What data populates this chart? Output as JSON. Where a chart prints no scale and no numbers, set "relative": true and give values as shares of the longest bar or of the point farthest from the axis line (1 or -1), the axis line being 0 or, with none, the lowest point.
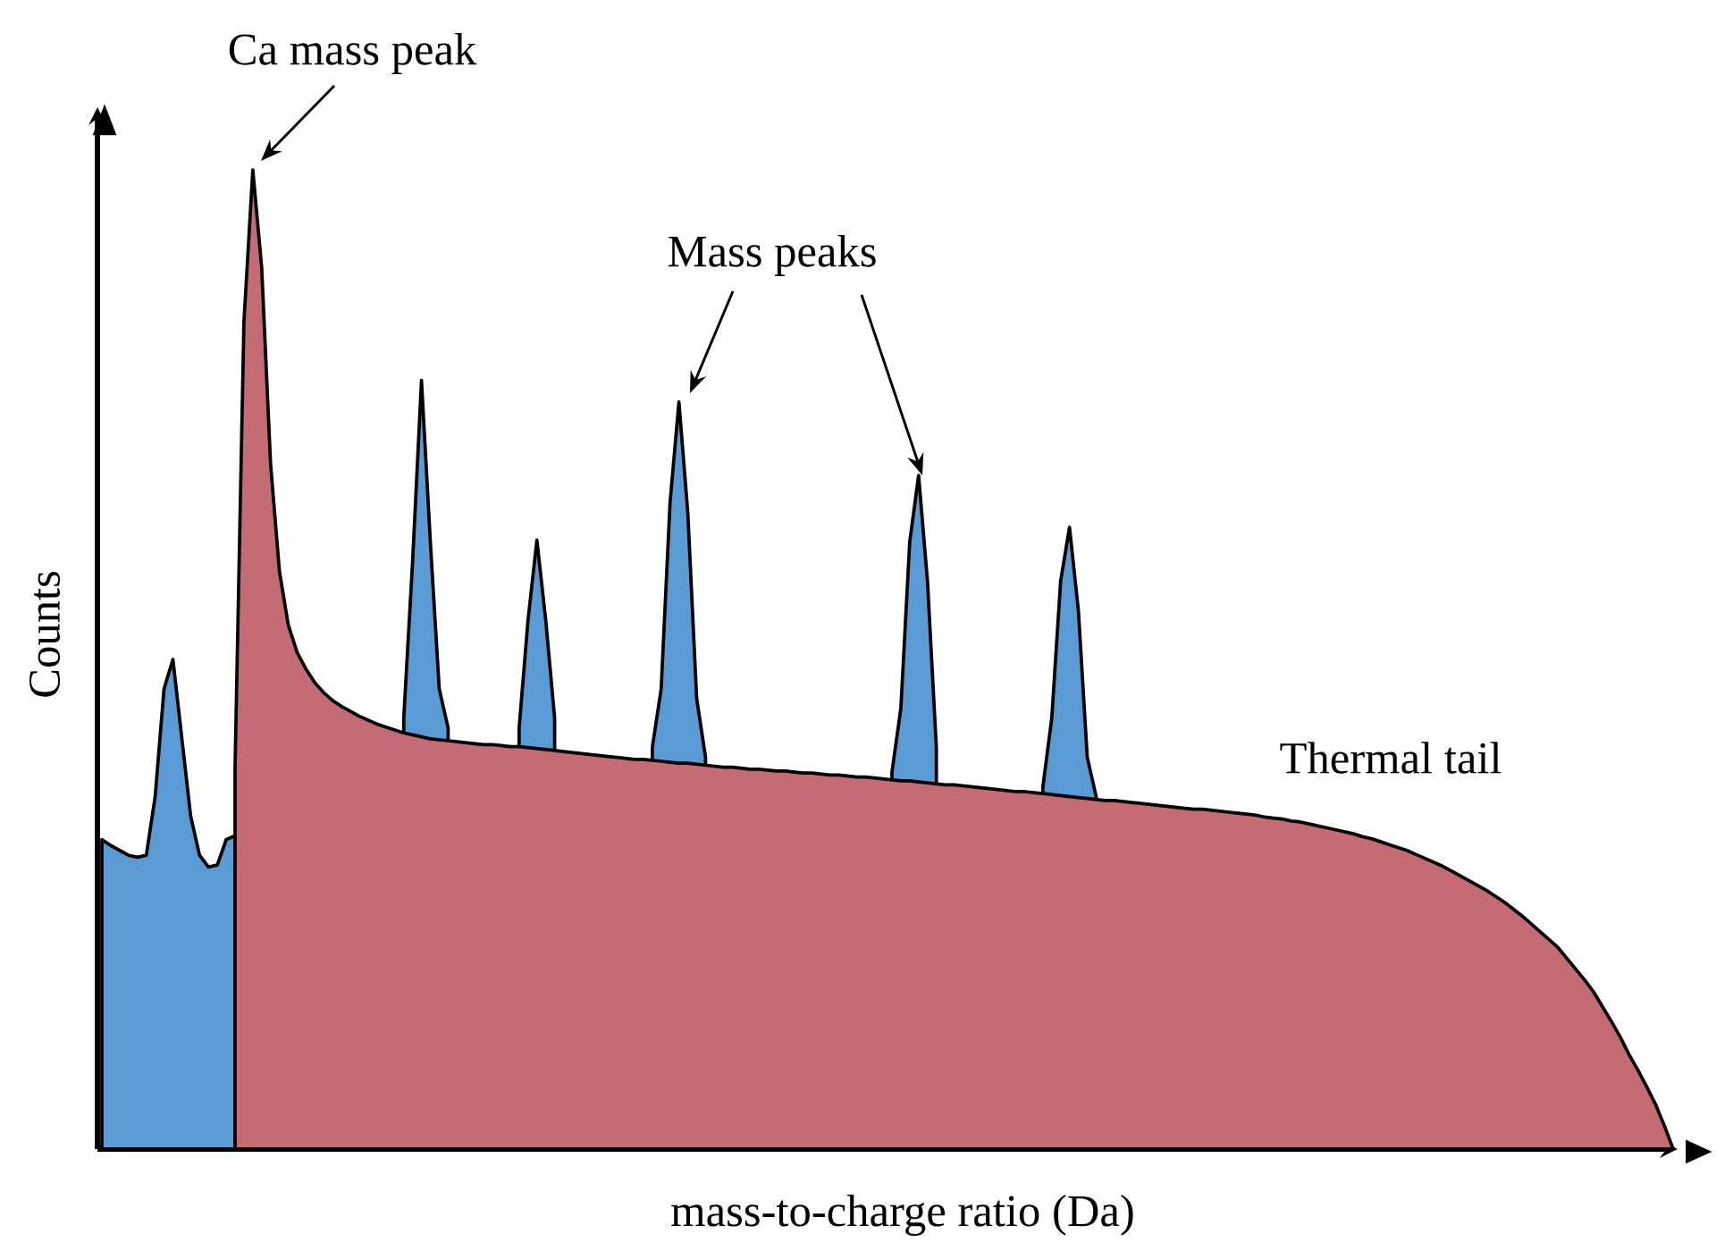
{
  "chart_data": {
    "type": "area",
    "relative": true,
    "xlabel": "mass-to-charge ratio (Da)",
    "ylabel": "Counts",
    "annotations": [
      "Ca mass peak",
      "Mass peaks",
      "Thermal tail"
    ],
    "categories": [
      null,
      null,
      null,
      null,
      null,
      null,
      null,
      null,
      null,
      null,
      null,
      null,
      null,
      null,
      null,
      null,
      null,
      null,
      null,
      null,
      null,
      null,
      null,
      null,
      null,
      null,
      null,
      null,
      null,
      null,
      null,
      null,
      null,
      null,
      null,
      null,
      null,
      null,
      null,
      null,
      null,
      null,
      null,
      null,
      null,
      null,
      null,
      null,
      null,
      null,
      null,
      null,
      null,
      null,
      null,
      null,
      null,
      null,
      null,
      null,
      null,
      null,
      null,
      null,
      null,
      null,
      null,
      null,
      null,
      null,
      null,
      null,
      null,
      null,
      null,
      null,
      null,
      null,
      null,
      null,
      null,
      null,
      null,
      null,
      null,
      null,
      null,
      null,
      null,
      null,
      null,
      null,
      null,
      null,
      null,
      null,
      null,
      null,
      null,
      null,
      null,
      null,
      null,
      null,
      null,
      null,
      null,
      null,
      null,
      null,
      null,
      null,
      null,
      null,
      null,
      null,
      null,
      null,
      null,
      null,
      null,
      null,
      null,
      null,
      null,
      null,
      null,
      null,
      null,
      null,
      null,
      null,
      null,
      null,
      null,
      null,
      null,
      null,
      null,
      null,
      null,
      null,
      null,
      null,
      null,
      null,
      null,
      null,
      null,
      null,
      null,
      null,
      null,
      null,
      null,
      null,
      null,
      null,
      null,
      null,
      null,
      null,
      null,
      null,
      null,
      null,
      null,
      null,
      null,
      null,
      null,
      null,
      null,
      null,
      null,
      null,
      null,
      null
    ],
    "series": [
      {
        "color": "#5b9bd5",
        "values": [
          0.316,
          0.31,
          0.305,
          0.3,
          0.298,
          0.3,
          0.36,
          0.47,
          0.5,
          0.42,
          0.34,
          0.3,
          0.288,
          0.29,
          0.316,
          0.32,
          null,
          null,
          null,
          null,
          null,
          null,
          null,
          null,
          null,
          null,
          null,
          null,
          null,
          null,
          null,
          null,
          null,
          null,
          0.44,
          0.6,
          0.785,
          0.62,
          0.47,
          0.43,
          null,
          null,
          null,
          null,
          null,
          null,
          null,
          0.43,
          0.54,
          0.622,
          0.54,
          0.44,
          null,
          null,
          null,
          null,
          null,
          null,
          null,
          null,
          null,
          null,
          0.41,
          0.47,
          0.66,
          0.763,
          0.65,
          0.46,
          0.4,
          null,
          null,
          null,
          null,
          null,
          null,
          null,
          null,
          null,
          null,
          null,
          null,
          null,
          null,
          null,
          null,
          null,
          null,
          null,
          null,
          0.385,
          0.45,
          0.62,
          0.688,
          0.58,
          0.41,
          null,
          null,
          null,
          null,
          null,
          null,
          null,
          null,
          null,
          null,
          null,
          0.37,
          0.44,
          0.58,
          0.635,
          0.55,
          0.4,
          0.36,
          null,
          null,
          null,
          null,
          null,
          null,
          null,
          null,
          null,
          null,
          null,
          null,
          null,
          null,
          null,
          null,
          null,
          null,
          null,
          null,
          null,
          null,
          null,
          null,
          null,
          null,
          null,
          null,
          null,
          null,
          null,
          null,
          null,
          null,
          null,
          null,
          null,
          null,
          null,
          null,
          null,
          null,
          null,
          null,
          null,
          null,
          null,
          null,
          null,
          null,
          null,
          null,
          null,
          null,
          null,
          null,
          null,
          null,
          null,
          null,
          null,
          null,
          null,
          null,
          null
        ]
      },
      {
        "color": "#c56b73",
        "values": [
          null,
          null,
          null,
          null,
          null,
          null,
          null,
          null,
          null,
          null,
          null,
          null,
          null,
          null,
          null,
          0.39,
          0.845,
          1.0,
          0.9,
          0.7,
          0.59,
          0.535,
          0.507,
          0.49,
          0.476,
          0.466,
          0.458,
          0.452,
          0.447,
          0.442,
          0.438,
          0.434,
          0.431,
          0.428,
          0.425,
          0.423,
          0.421,
          0.419,
          0.418,
          0.417,
          0.416,
          0.415,
          0.414,
          0.413,
          0.413,
          0.412,
          0.411,
          0.411,
          0.41,
          0.409,
          0.408,
          0.407,
          0.406,
          0.405,
          0.404,
          0.403,
          0.402,
          0.401,
          0.4,
          0.399,
          0.398,
          0.398,
          0.397,
          0.396,
          0.395,
          0.394,
          0.394,
          0.393,
          0.392,
          0.391,
          0.39,
          0.39,
          0.389,
          0.388,
          0.388,
          0.387,
          0.386,
          0.386,
          0.385,
          0.384,
          0.384,
          0.383,
          0.382,
          0.382,
          0.381,
          0.38,
          0.38,
          0.379,
          0.378,
          0.377,
          0.376,
          0.376,
          0.375,
          0.374,
          0.373,
          0.372,
          0.372,
          0.371,
          0.37,
          0.369,
          0.368,
          0.367,
          0.366,
          0.365,
          0.365,
          0.364,
          0.363,
          0.362,
          0.361,
          0.36,
          0.359,
          0.358,
          0.357,
          0.356,
          0.356,
          0.355,
          0.354,
          0.353,
          0.352,
          0.351,
          0.35,
          0.349,
          0.348,
          0.347,
          0.347,
          0.346,
          0.345,
          0.344,
          0.343,
          0.342,
          0.341,
          0.339,
          0.338,
          0.337,
          0.335,
          0.334,
          0.332,
          0.33,
          0.328,
          0.326,
          0.324,
          0.322,
          0.319,
          0.317,
          0.314,
          0.311,
          0.308,
          0.305,
          0.301,
          0.297,
          0.293,
          0.289,
          0.284,
          0.279,
          0.274,
          0.269,
          0.264,
          0.258,
          0.252,
          0.245,
          0.238,
          0.23,
          0.222,
          0.214,
          0.206,
          0.195,
          0.184,
          0.173,
          0.161,
          0.146,
          0.131,
          0.115,
          0.097,
          0.081,
          0.064,
          0.046,
          0.024,
          0
        ]
      }
    ]
  }
}
